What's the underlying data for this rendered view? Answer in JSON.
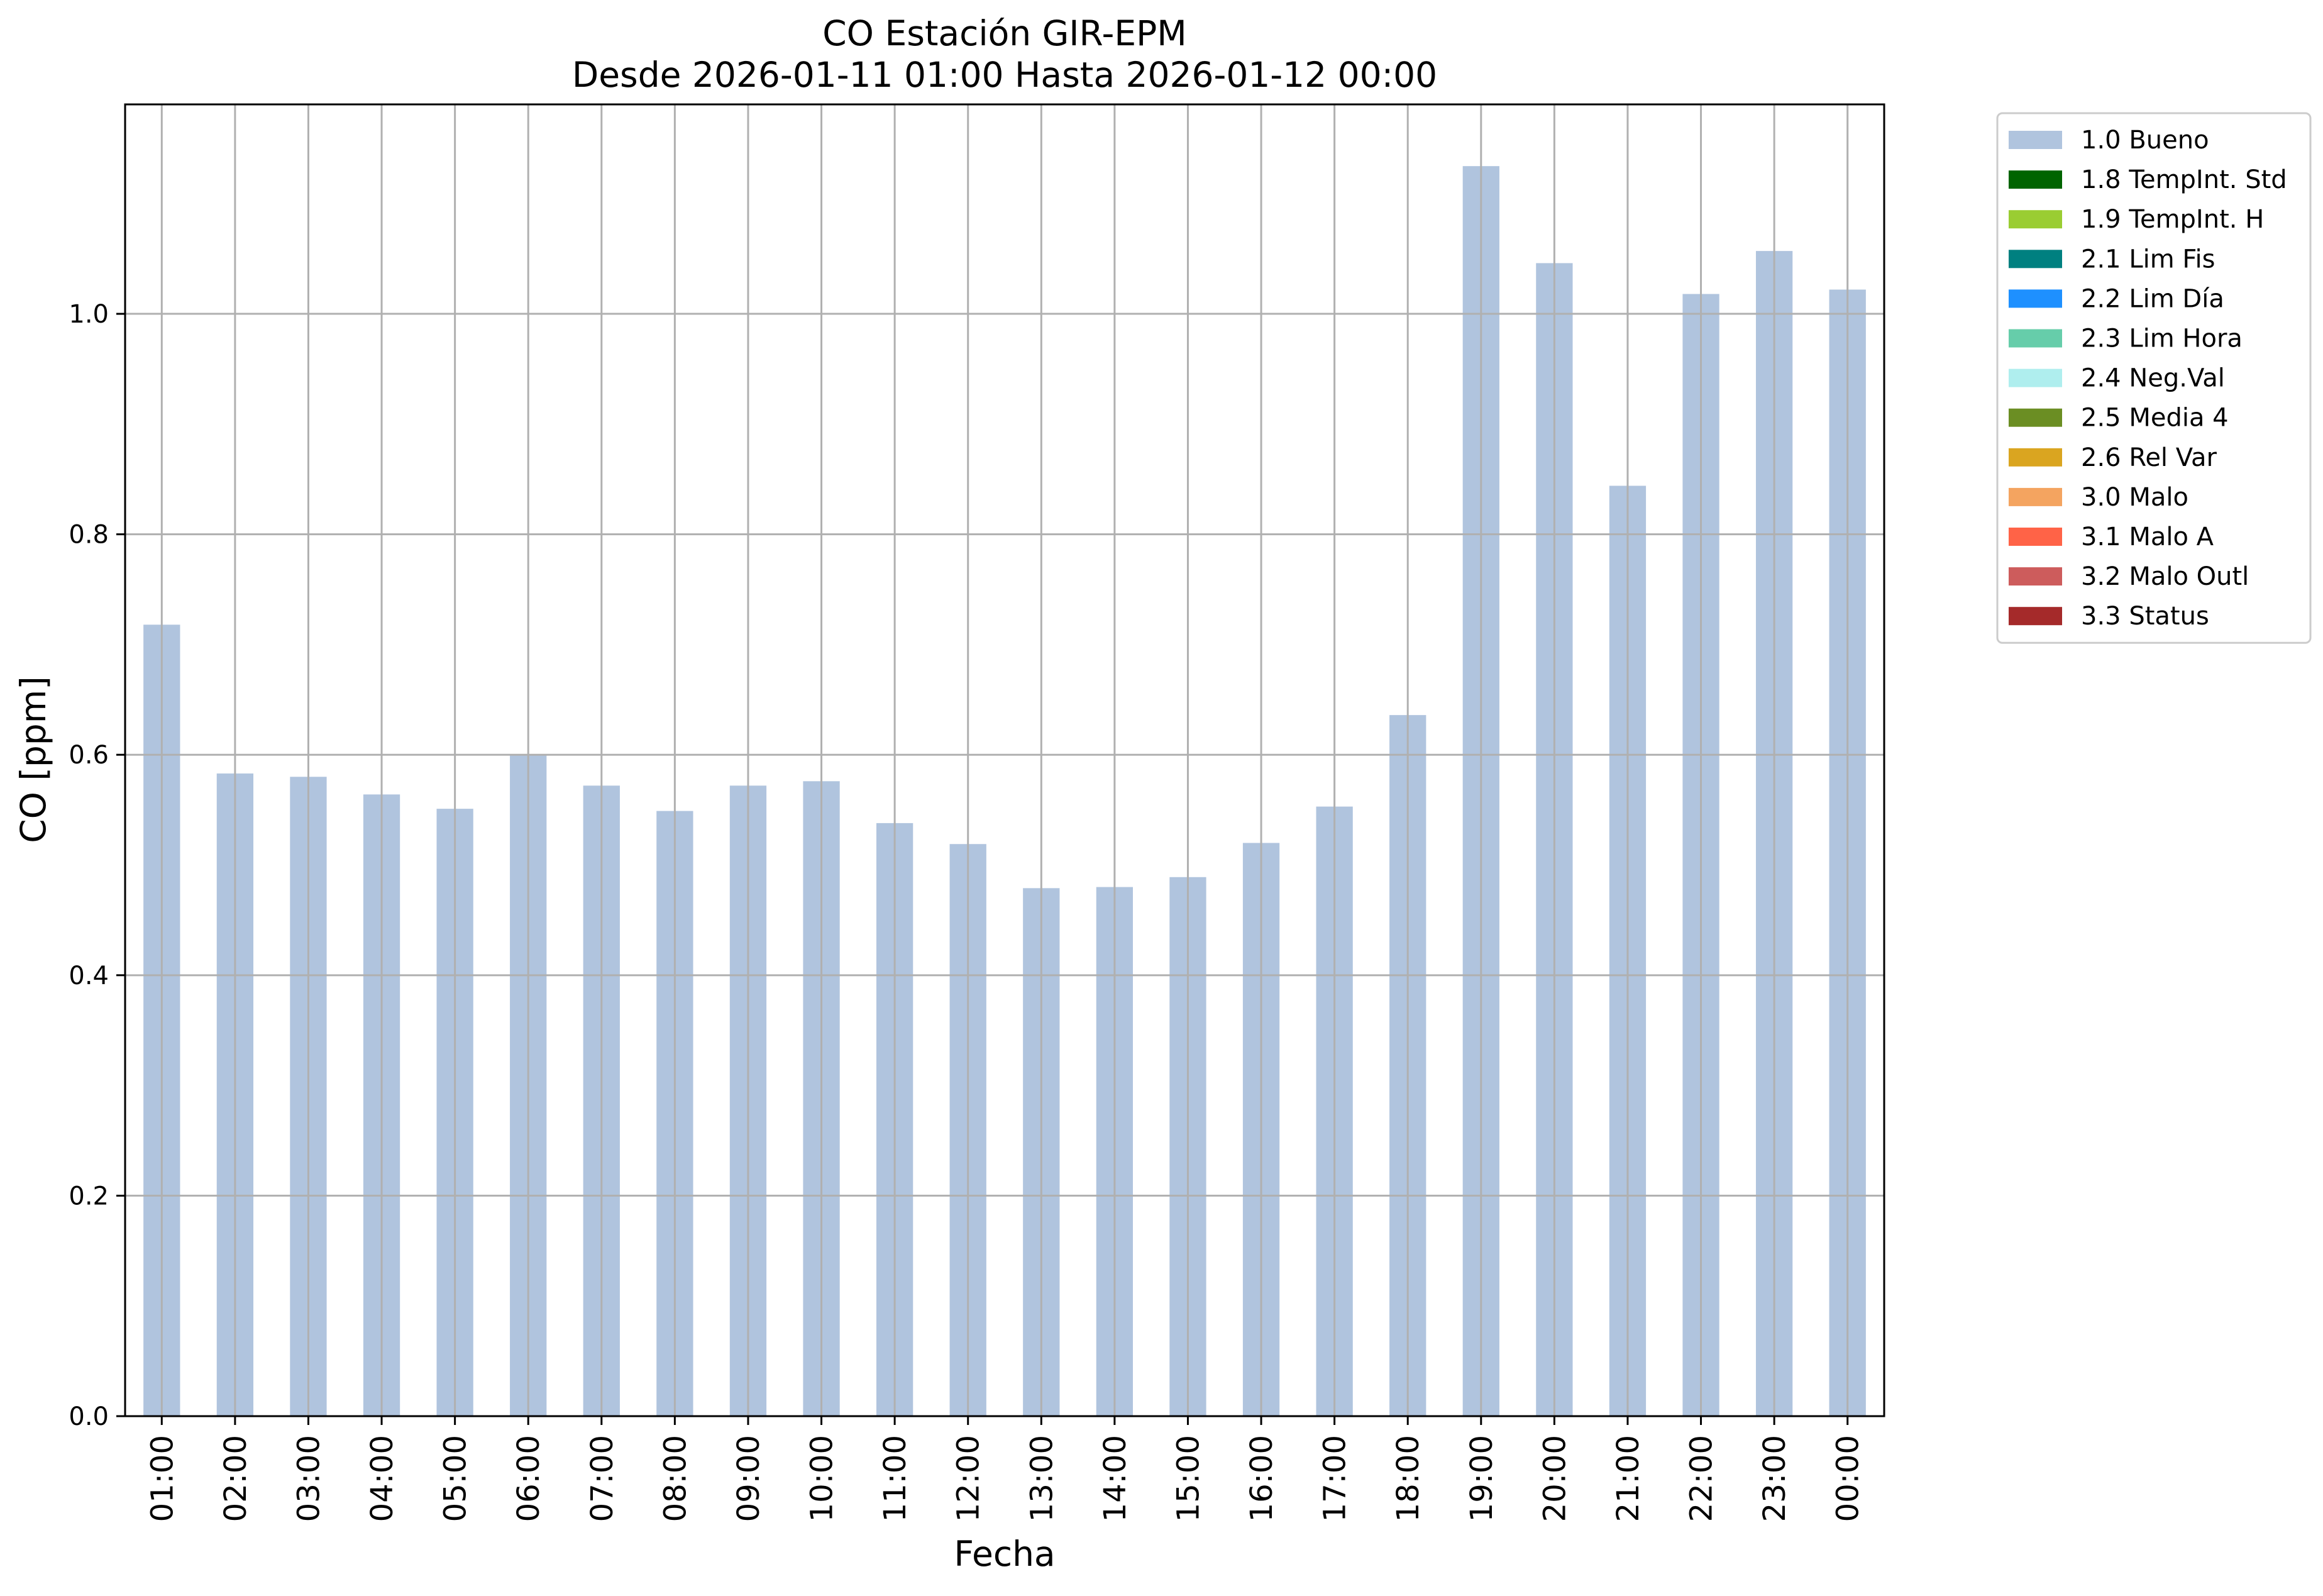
{
  "chart_data": {
    "type": "bar",
    "title": "CO Estación GIR-EPM",
    "subtitle": "Desde 2026-01-11 01:00 Hasta 2026-01-12 00:00",
    "xlabel": "Fecha",
    "ylabel": "CO [ppm]",
    "ylim": [
      0.0,
      1.19
    ],
    "yticks": [
      {
        "value": 0.0,
        "label": "0.0"
      },
      {
        "value": 0.2,
        "label": "0.2"
      },
      {
        "value": 0.4,
        "label": "0.4"
      },
      {
        "value": 0.6,
        "label": "0.6"
      },
      {
        "value": 0.8,
        "label": "0.8"
      },
      {
        "value": 1.0,
        "label": "1.0"
      }
    ],
    "grid": true,
    "categories": [
      "01:00",
      "02:00",
      "03:00",
      "04:00",
      "05:00",
      "06:00",
      "07:00",
      "08:00",
      "09:00",
      "10:00",
      "11:00",
      "12:00",
      "13:00",
      "14:00",
      "15:00",
      "16:00",
      "17:00",
      "18:00",
      "19:00",
      "20:00",
      "21:00",
      "22:00",
      "23:00",
      "00:00"
    ],
    "values": [
      0.718,
      0.583,
      0.58,
      0.564,
      0.551,
      0.6,
      0.572,
      0.549,
      0.572,
      0.576,
      0.538,
      0.519,
      0.479,
      0.48,
      0.489,
      0.52,
      0.553,
      0.636,
      1.134,
      1.046,
      0.844,
      1.018,
      1.057,
      1.022
    ],
    "bar_color": "#b0c4de",
    "legend_position": "outside upper right",
    "legend": [
      {
        "label": "1.0 Bueno",
        "color": "#b0c4de"
      },
      {
        "label": "1.8 TempInt. Std",
        "color": "#006400"
      },
      {
        "label": "1.9 TempInt. H",
        "color": "#9acd32"
      },
      {
        "label": "2.1 Lim Fis",
        "color": "#008080"
      },
      {
        "label": "2.2 Lim Día",
        "color": "#1e90ff"
      },
      {
        "label": "2.3 Lim Hora",
        "color": "#66cdaa"
      },
      {
        "label": "2.4 Neg.Val",
        "color": "#afeeee"
      },
      {
        "label": "2.5 Media 4",
        "color": "#6b8e23"
      },
      {
        "label": "2.6 Rel Var",
        "color": "#daa520"
      },
      {
        "label": "3.0 Malo",
        "color": "#f4a460"
      },
      {
        "label": "3.1 Malo A",
        "color": "#ff6347"
      },
      {
        "label": "3.2 Malo Outl",
        "color": "#cd5c5c"
      },
      {
        "label": "3.3 Status",
        "color": "#a52a2a"
      }
    ]
  }
}
